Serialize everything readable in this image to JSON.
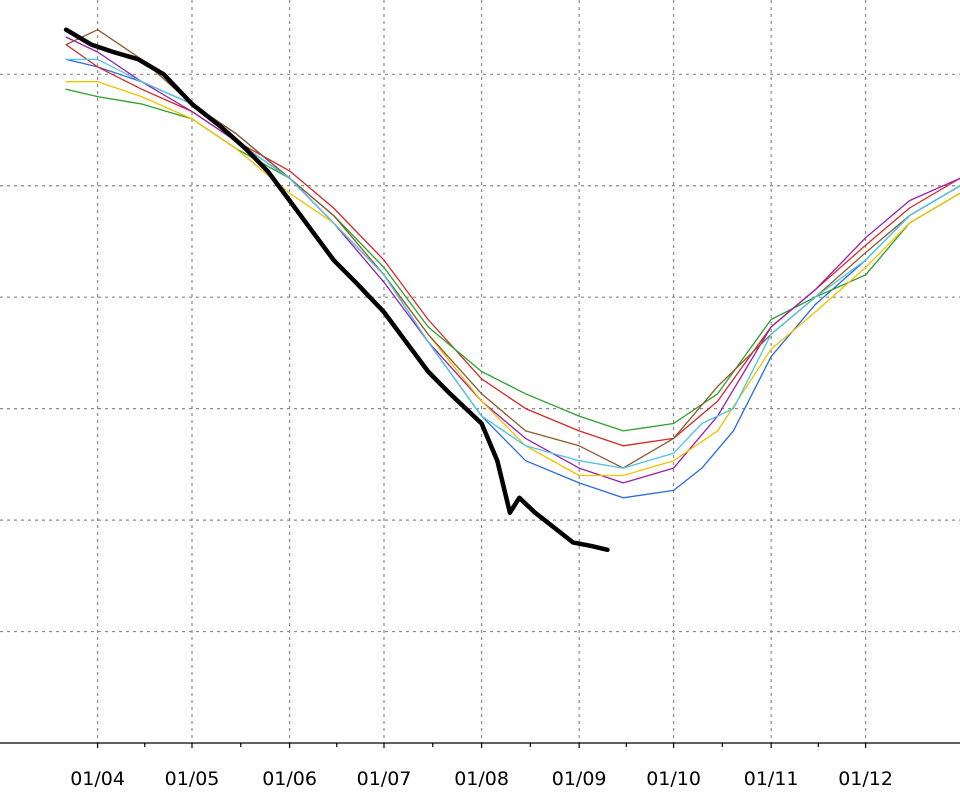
{
  "chart_data": {
    "type": "line",
    "title": "",
    "xlabel": "",
    "ylabel": "",
    "grid": true,
    "xlim": [
      "2023-03-01",
      "2023-12-31"
    ],
    "ylim": [
      0,
      1
    ],
    "x_ticks": [
      {
        "date": "2023-04-01",
        "label": "01/04"
      },
      {
        "date": "2023-05-01",
        "label": "01/05"
      },
      {
        "date": "2023-06-01",
        "label": "01/06"
      },
      {
        "date": "2023-07-01",
        "label": "01/07"
      },
      {
        "date": "2023-08-01",
        "label": "01/08"
      },
      {
        "date": "2023-09-01",
        "label": "01/09"
      },
      {
        "date": "2023-10-01",
        "label": "01/10"
      },
      {
        "date": "2023-11-01",
        "label": "01/11"
      },
      {
        "date": "2023-12-01",
        "label": "01/12"
      }
    ],
    "y_gridlines": [
      0.9,
      0.75,
      0.6,
      0.45,
      0.3,
      0.15
    ],
    "series": [
      {
        "color": "#000000",
        "width": 4.5,
        "points": [
          [
            "2023-03-22",
            0.96
          ],
          [
            "2023-03-30",
            0.94
          ],
          [
            "2023-04-06",
            0.93
          ],
          [
            "2023-04-14",
            0.92
          ],
          [
            "2023-04-22",
            0.9
          ],
          [
            "2023-05-01",
            0.86
          ],
          [
            "2023-05-10",
            0.83
          ],
          [
            "2023-05-18",
            0.8
          ],
          [
            "2023-05-25",
            0.77
          ],
          [
            "2023-06-01",
            0.73
          ],
          [
            "2023-06-08",
            0.69
          ],
          [
            "2023-06-15",
            0.65
          ],
          [
            "2023-06-22",
            0.62
          ],
          [
            "2023-07-01",
            0.58
          ],
          [
            "2023-07-08",
            0.54
          ],
          [
            "2023-07-15",
            0.5
          ],
          [
            "2023-07-22",
            0.47
          ],
          [
            "2023-08-01",
            0.43
          ],
          [
            "2023-08-06",
            0.38
          ],
          [
            "2023-08-10",
            0.31
          ],
          [
            "2023-08-13",
            0.33
          ],
          [
            "2023-08-18",
            0.31
          ],
          [
            "2023-08-24",
            0.29
          ],
          [
            "2023-08-30",
            0.27
          ],
          [
            "2023-09-05",
            0.265
          ],
          [
            "2023-09-10",
            0.26
          ]
        ]
      },
      {
        "color": "#2b6bd8",
        "width": 1.3,
        "points": [
          [
            "2023-03-22",
            0.92
          ],
          [
            "2023-04-01",
            0.91
          ],
          [
            "2023-04-15",
            0.89
          ],
          [
            "2023-05-01",
            0.86
          ],
          [
            "2023-05-15",
            0.82
          ],
          [
            "2023-06-01",
            0.76
          ],
          [
            "2023-06-15",
            0.7
          ],
          [
            "2023-07-01",
            0.63
          ],
          [
            "2023-07-15",
            0.54
          ],
          [
            "2023-08-01",
            0.44
          ],
          [
            "2023-08-15",
            0.38
          ],
          [
            "2023-09-01",
            0.35
          ],
          [
            "2023-09-15",
            0.33
          ],
          [
            "2023-10-01",
            0.34
          ],
          [
            "2023-10-10",
            0.37
          ],
          [
            "2023-10-20",
            0.42
          ],
          [
            "2023-11-01",
            0.52
          ],
          [
            "2023-11-15",
            0.59
          ],
          [
            "2023-12-01",
            0.65
          ],
          [
            "2023-12-15",
            0.71
          ],
          [
            "2023-12-31",
            0.75
          ]
        ]
      },
      {
        "color": "#d62728",
        "width": 1.3,
        "points": [
          [
            "2023-03-22",
            0.94
          ],
          [
            "2023-04-01",
            0.91
          ],
          [
            "2023-04-15",
            0.88
          ],
          [
            "2023-05-01",
            0.85
          ],
          [
            "2023-05-15",
            0.81
          ],
          [
            "2023-06-01",
            0.77
          ],
          [
            "2023-06-15",
            0.72
          ],
          [
            "2023-07-01",
            0.65
          ],
          [
            "2023-07-15",
            0.57
          ],
          [
            "2023-08-01",
            0.49
          ],
          [
            "2023-08-15",
            0.45
          ],
          [
            "2023-09-01",
            0.42
          ],
          [
            "2023-09-15",
            0.4
          ],
          [
            "2023-10-01",
            0.41
          ],
          [
            "2023-10-15",
            0.46
          ],
          [
            "2023-11-01",
            0.56
          ],
          [
            "2023-11-15",
            0.61
          ],
          [
            "2023-12-01",
            0.67
          ],
          [
            "2023-12-15",
            0.72
          ],
          [
            "2023-12-31",
            0.76
          ]
        ]
      },
      {
        "color": "#2ca02c",
        "width": 1.3,
        "points": [
          [
            "2023-03-22",
            0.88
          ],
          [
            "2023-04-01",
            0.87
          ],
          [
            "2023-04-15",
            0.86
          ],
          [
            "2023-05-01",
            0.84
          ],
          [
            "2023-05-15",
            0.8
          ],
          [
            "2023-06-01",
            0.76
          ],
          [
            "2023-06-15",
            0.71
          ],
          [
            "2023-07-01",
            0.64
          ],
          [
            "2023-07-15",
            0.56
          ],
          [
            "2023-08-01",
            0.5
          ],
          [
            "2023-08-15",
            0.47
          ],
          [
            "2023-09-01",
            0.44
          ],
          [
            "2023-09-15",
            0.42
          ],
          [
            "2023-10-01",
            0.43
          ],
          [
            "2023-10-15",
            0.47
          ],
          [
            "2023-11-01",
            0.57
          ],
          [
            "2023-11-15",
            0.6
          ],
          [
            "2023-12-01",
            0.63
          ],
          [
            "2023-12-15",
            0.7
          ],
          [
            "2023-12-31",
            0.74
          ]
        ]
      },
      {
        "color": "#9b1fa8",
        "width": 1.3,
        "points": [
          [
            "2023-03-22",
            0.95
          ],
          [
            "2023-04-01",
            0.93
          ],
          [
            "2023-04-15",
            0.89
          ],
          [
            "2023-05-01",
            0.85
          ],
          [
            "2023-05-15",
            0.81
          ],
          [
            "2023-06-01",
            0.76
          ],
          [
            "2023-06-15",
            0.7
          ],
          [
            "2023-07-01",
            0.62
          ],
          [
            "2023-07-15",
            0.54
          ],
          [
            "2023-08-01",
            0.46
          ],
          [
            "2023-08-15",
            0.41
          ],
          [
            "2023-09-01",
            0.37
          ],
          [
            "2023-09-15",
            0.35
          ],
          [
            "2023-10-01",
            0.37
          ],
          [
            "2023-10-15",
            0.44
          ],
          [
            "2023-11-01",
            0.56
          ],
          [
            "2023-11-15",
            0.61
          ],
          [
            "2023-12-01",
            0.68
          ],
          [
            "2023-12-15",
            0.73
          ],
          [
            "2023-12-31",
            0.76
          ]
        ]
      },
      {
        "color": "#f2c200",
        "width": 1.3,
        "points": [
          [
            "2023-03-22",
            0.89
          ],
          [
            "2023-04-01",
            0.89
          ],
          [
            "2023-04-15",
            0.87
          ],
          [
            "2023-05-01",
            0.84
          ],
          [
            "2023-05-15",
            0.8
          ],
          [
            "2023-06-01",
            0.74
          ],
          [
            "2023-06-15",
            0.7
          ],
          [
            "2023-07-01",
            0.63
          ],
          [
            "2023-07-15",
            0.55
          ],
          [
            "2023-08-01",
            0.46
          ],
          [
            "2023-08-15",
            0.4
          ],
          [
            "2023-09-01",
            0.36
          ],
          [
            "2023-09-15",
            0.36
          ],
          [
            "2023-10-01",
            0.38
          ],
          [
            "2023-10-15",
            0.42
          ],
          [
            "2023-11-01",
            0.53
          ],
          [
            "2023-11-15",
            0.58
          ],
          [
            "2023-12-01",
            0.64
          ],
          [
            "2023-12-15",
            0.7
          ],
          [
            "2023-12-31",
            0.74
          ]
        ]
      },
      {
        "color": "#8b5a2b",
        "width": 1.3,
        "points": [
          [
            "2023-03-22",
            0.94
          ],
          [
            "2023-04-01",
            0.96
          ],
          [
            "2023-04-15",
            0.92
          ],
          [
            "2023-05-01",
            0.86
          ],
          [
            "2023-05-15",
            0.82
          ],
          [
            "2023-06-01",
            0.76
          ],
          [
            "2023-06-15",
            0.71
          ],
          [
            "2023-07-01",
            0.63
          ],
          [
            "2023-07-15",
            0.55
          ],
          [
            "2023-08-01",
            0.47
          ],
          [
            "2023-08-15",
            0.42
          ],
          [
            "2023-09-01",
            0.4
          ],
          [
            "2023-09-15",
            0.37
          ],
          [
            "2023-10-01",
            0.41
          ],
          [
            "2023-10-15",
            0.48
          ],
          [
            "2023-11-01",
            0.55
          ],
          [
            "2023-11-15",
            0.6
          ],
          [
            "2023-12-01",
            0.66
          ],
          [
            "2023-12-15",
            0.71
          ],
          [
            "2023-12-31",
            0.75
          ]
        ]
      },
      {
        "color": "#4fc3e8",
        "width": 1.3,
        "points": [
          [
            "2023-03-22",
            0.92
          ],
          [
            "2023-04-01",
            0.92
          ],
          [
            "2023-04-15",
            0.89
          ],
          [
            "2023-05-01",
            0.86
          ],
          [
            "2023-05-15",
            0.81
          ],
          [
            "2023-06-01",
            0.76
          ],
          [
            "2023-06-15",
            0.7
          ],
          [
            "2023-07-01",
            0.63
          ],
          [
            "2023-07-15",
            0.54
          ],
          [
            "2023-08-01",
            0.44
          ],
          [
            "2023-08-15",
            0.4
          ],
          [
            "2023-09-01",
            0.38
          ],
          [
            "2023-09-15",
            0.37
          ],
          [
            "2023-10-01",
            0.39
          ],
          [
            "2023-10-10",
            0.43
          ],
          [
            "2023-10-20",
            0.45
          ],
          [
            "2023-11-01",
            0.55
          ],
          [
            "2023-11-15",
            0.6
          ],
          [
            "2023-12-01",
            0.65
          ],
          [
            "2023-12-15",
            0.71
          ],
          [
            "2023-12-31",
            0.75
          ]
        ]
      }
    ]
  }
}
